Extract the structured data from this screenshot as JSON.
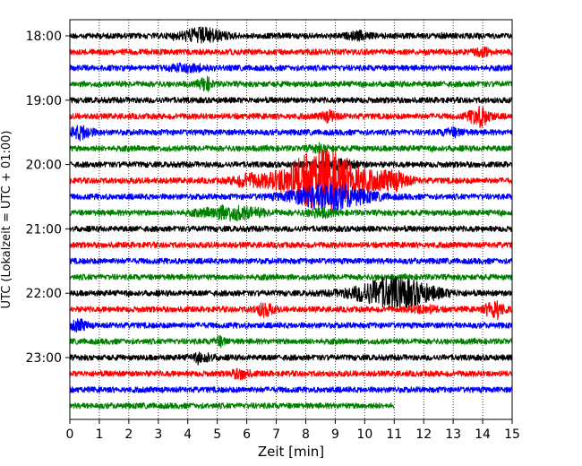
{
  "chart_data": {
    "type": "line",
    "title": "",
    "xlabel": "Zeit  [min]",
    "ylabel": "UTC (Lokalzeit = UTC + 01:00)",
    "xlim": [
      0,
      15
    ],
    "x_ticks": [
      0,
      1,
      2,
      3,
      4,
      5,
      6,
      7,
      8,
      9,
      10,
      11,
      12,
      13,
      14,
      15
    ],
    "x_tick_labels": [
      "0",
      "1",
      "2",
      "3",
      "4",
      "5",
      "6",
      "7",
      "8",
      "9",
      "10",
      "11",
      "12",
      "13",
      "14",
      "15"
    ],
    "y_tick_labels": [
      "18:00",
      "19:00",
      "20:00",
      "21:00",
      "22:00",
      "23:00"
    ],
    "grid": "vertical dotted",
    "trace_interval_min": 15,
    "start_time": "18:00",
    "end_time": "23:45",
    "trace_colors": [
      "#000000",
      "#ff0000",
      "#0000ff",
      "#008000"
    ],
    "traces": [
      {
        "start": "18:00",
        "color": "#000000",
        "events": [
          {
            "t": 4.5,
            "amp": 2.2,
            "width": 1.0
          },
          {
            "t": 9.8,
            "amp": 1.0,
            "width": 0.5
          }
        ]
      },
      {
        "start": "18:15",
        "color": "#ff0000",
        "events": [
          {
            "t": 14.0,
            "amp": 1.0,
            "width": 0.4
          }
        ]
      },
      {
        "start": "18:30",
        "color": "#0000ff",
        "events": [
          {
            "t": 4.0,
            "amp": 1.0,
            "width": 0.8
          }
        ]
      },
      {
        "start": "18:45",
        "color": "#008000",
        "events": [
          {
            "t": 4.6,
            "amp": 2.0,
            "width": 0.3
          }
        ]
      },
      {
        "start": "19:00",
        "color": "#000000",
        "events": []
      },
      {
        "start": "19:15",
        "color": "#ff0000",
        "events": [
          {
            "t": 8.8,
            "amp": 1.5,
            "width": 0.4
          },
          {
            "t": 13.9,
            "amp": 3.0,
            "width": 0.5
          }
        ]
      },
      {
        "start": "19:30",
        "color": "#0000ff",
        "events": [
          {
            "t": 0.4,
            "amp": 2.0,
            "width": 0.5
          },
          {
            "t": 13.0,
            "amp": 1.0,
            "width": 0.5
          }
        ]
      },
      {
        "start": "19:45",
        "color": "#008000",
        "events": [
          {
            "t": 8.5,
            "amp": 1.0,
            "width": 0.5
          }
        ]
      },
      {
        "start": "20:00",
        "color": "#000000",
        "events": [
          {
            "t": 9.0,
            "amp": 1.2,
            "width": 1.0
          }
        ]
      },
      {
        "start": "20:15",
        "color": "#ff0000",
        "events": [
          {
            "t": 8.6,
            "amp": 10.0,
            "width": 2.0
          },
          {
            "t": 11.0,
            "amp": 2.5,
            "width": 0.7
          },
          {
            "t": 6.0,
            "amp": 1.5,
            "width": 0.7
          }
        ]
      },
      {
        "start": "20:30",
        "color": "#0000ff",
        "events": [
          {
            "t": 8.8,
            "amp": 4.0,
            "width": 1.8
          }
        ]
      },
      {
        "start": "20:45",
        "color": "#008000",
        "events": [
          {
            "t": 5.5,
            "amp": 2.0,
            "width": 1.4
          },
          {
            "t": 8.5,
            "amp": 1.2,
            "width": 0.6
          }
        ]
      },
      {
        "start": "21:00",
        "color": "#000000",
        "events": []
      },
      {
        "start": "21:15",
        "color": "#ff0000",
        "events": []
      },
      {
        "start": "21:30",
        "color": "#0000ff",
        "events": []
      },
      {
        "start": "21:45",
        "color": "#008000",
        "events": []
      },
      {
        "start": "22:00",
        "color": "#000000",
        "events": [
          {
            "t": 11.0,
            "amp": 5.0,
            "width": 1.8
          }
        ]
      },
      {
        "start": "22:15",
        "color": "#ff0000",
        "events": [
          {
            "t": 6.6,
            "amp": 2.0,
            "width": 0.4
          },
          {
            "t": 14.4,
            "amp": 3.0,
            "width": 0.4
          },
          {
            "t": 12.0,
            "amp": 1.0,
            "width": 0.6
          }
        ]
      },
      {
        "start": "22:30",
        "color": "#0000ff",
        "events": [
          {
            "t": 0.3,
            "amp": 1.5,
            "width": 0.4
          }
        ]
      },
      {
        "start": "22:45",
        "color": "#008000",
        "events": [
          {
            "t": 5.1,
            "amp": 1.2,
            "width": 0.3
          }
        ]
      },
      {
        "start": "23:00",
        "color": "#000000",
        "events": [
          {
            "t": 4.5,
            "amp": 1.2,
            "width": 0.5
          }
        ]
      },
      {
        "start": "23:15",
        "color": "#ff0000",
        "events": [
          {
            "t": 5.8,
            "amp": 1.4,
            "width": 0.4
          }
        ]
      },
      {
        "start": "23:30",
        "color": "#0000ff",
        "events": []
      },
      {
        "start": "23:45",
        "color": "#008000",
        "end_min": 11.0,
        "events": []
      }
    ]
  }
}
